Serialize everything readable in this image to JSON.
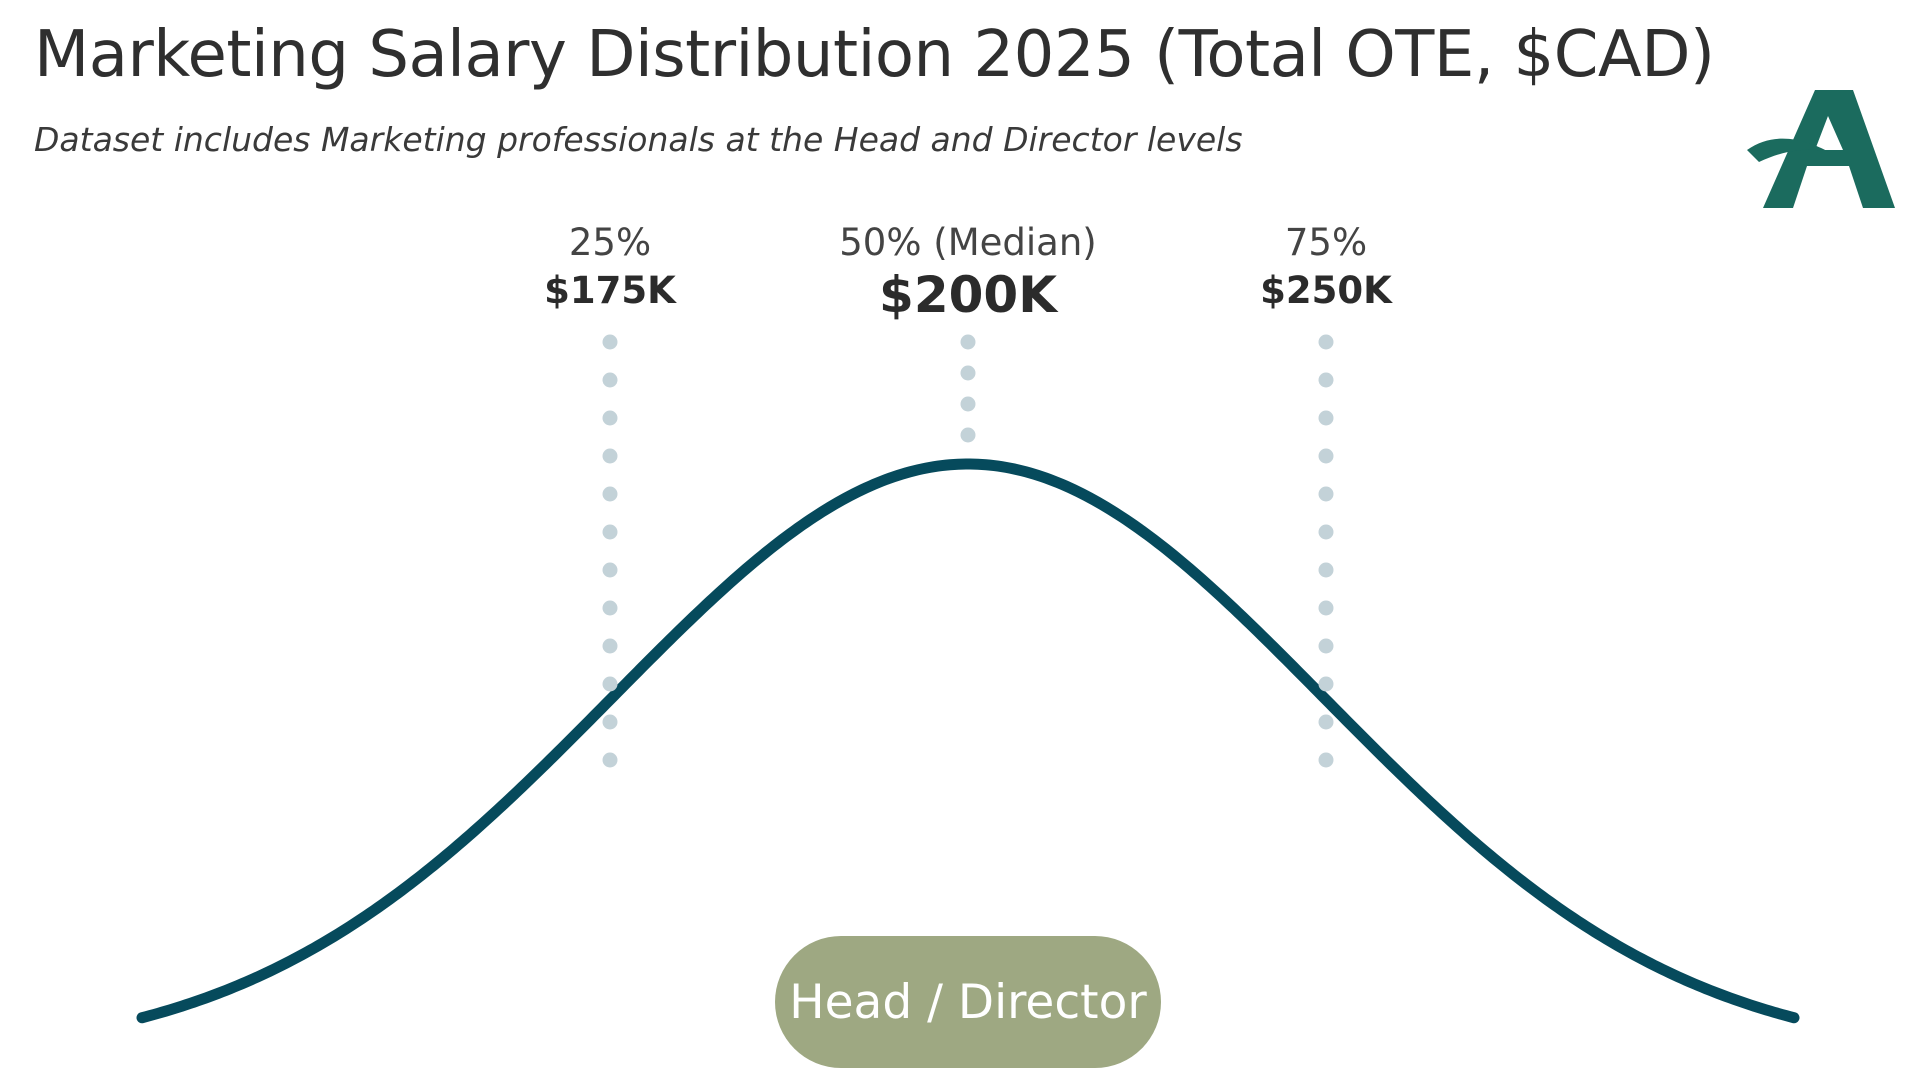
{
  "title": "Marketing Salary Distribution 2025 (Total OTE, $CAD)",
  "subtitle": "Dataset includes Marketing professionals at the Head and Director levels",
  "colors": {
    "curve": "#064a5c",
    "guide_dots": "#c3d2d8",
    "badge": "#9ea882",
    "badge_text": "#ffffff",
    "logo": "#1b6b5e",
    "text": "#2b2b2b"
  },
  "logo": {
    "icon": "stylized-letter-a-logo"
  },
  "chart_data": {
    "type": "line",
    "distribution": "normal",
    "median": 200,
    "unit": "$K",
    "percentiles": [
      {
        "label": "25%",
        "value": 175,
        "value_label": "$175K"
      },
      {
        "label": "50% (Median)",
        "value": 200,
        "value_label": "$200K"
      },
      {
        "label": "75%",
        "value": 250,
        "value_label": "$250K"
      }
    ],
    "series": [
      {
        "name": "Head / Director"
      }
    ],
    "xlabel": "",
    "ylabel": "",
    "grid": false,
    "legend": "none"
  }
}
